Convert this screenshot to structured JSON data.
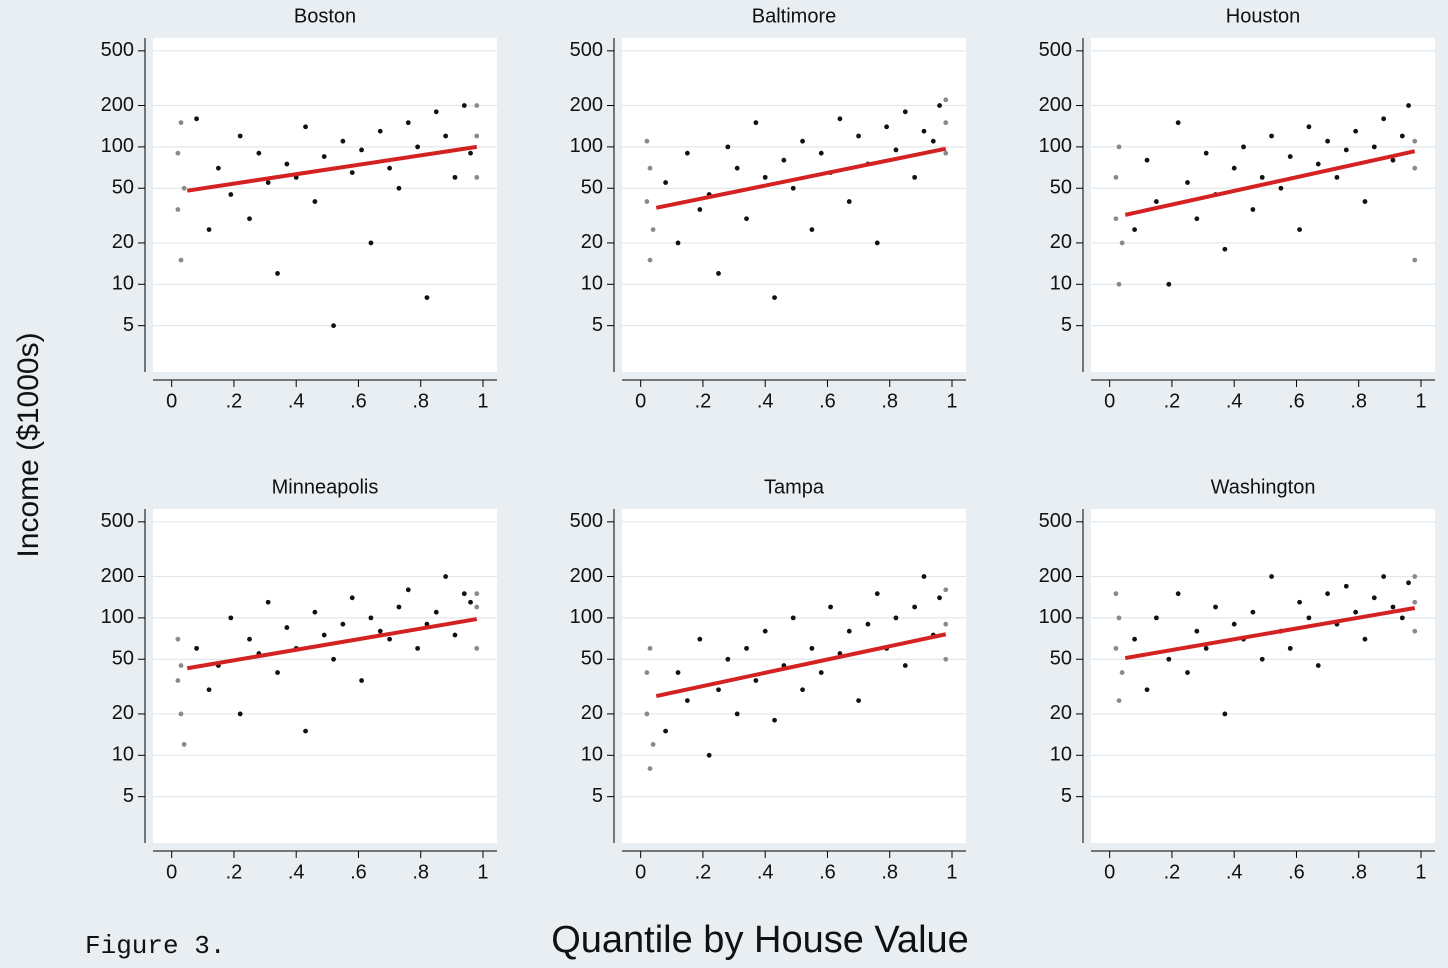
{
  "y_label": "Income ($1000s)",
  "x_label": "Quantile by House Value",
  "caption": "Figure 3.",
  "chart_data": [
    {
      "type": "scatter",
      "title": "Boston",
      "log_y": true,
      "grid": true,
      "xlim": [
        -0.06,
        1.045
      ],
      "ylim": [
        2.3,
        620
      ],
      "xticks": [
        0,
        {
          "value": 0.2,
          "label": ".2"
        },
        {
          "value": 0.4,
          "label": ".4"
        },
        {
          "value": 0.6,
          "label": ".6"
        },
        {
          "value": 0.8,
          "label": ".8"
        },
        1
      ],
      "yticks": [
        5,
        10,
        20,
        50,
        100,
        200,
        500
      ],
      "series": [
        {
          "color": "#111111",
          "x": [
            0.08,
            0.12,
            0.15,
            0.19,
            0.22,
            0.25,
            0.28,
            0.31,
            0.34,
            0.37,
            0.4,
            0.43,
            0.46,
            0.49,
            0.52,
            0.55,
            0.58,
            0.61,
            0.64,
            0.67,
            0.7,
            0.73,
            0.76,
            0.79,
            0.82,
            0.85,
            0.88,
            0.91,
            0.94,
            0.96
          ],
          "y": [
            160,
            25,
            70,
            45,
            120,
            30,
            90,
            55,
            12,
            75,
            60,
            140,
            40,
            85,
            5,
            110,
            65,
            95,
            20,
            130,
            70,
            50,
            150,
            100,
            8,
            180,
            120,
            60,
            200,
            90
          ]
        },
        {
          "color": "#8a8a8a",
          "x": [
            0.02,
            0.03,
            0.02,
            0.04,
            0.03,
            0.98,
            0.98,
            0.98
          ],
          "y": [
            35,
            15,
            90,
            50,
            150,
            120,
            200,
            60
          ]
        }
      ],
      "fit": {
        "color": "#d42222",
        "x": [
          0.05,
          0.98
        ],
        "y": [
          48,
          100
        ]
      }
    },
    {
      "type": "scatter",
      "title": "Baltimore",
      "log_y": true,
      "grid": true,
      "xlim": [
        -0.06,
        1.045
      ],
      "ylim": [
        2.3,
        620
      ],
      "xticks": [
        0,
        {
          "value": 0.2,
          "label": ".2"
        },
        {
          "value": 0.4,
          "label": ".4"
        },
        {
          "value": 0.6,
          "label": ".6"
        },
        {
          "value": 0.8,
          "label": ".8"
        },
        1
      ],
      "yticks": [
        5,
        10,
        20,
        50,
        100,
        200,
        500
      ],
      "series": [
        {
          "color": "#111111",
          "x": [
            0.08,
            0.12,
            0.15,
            0.19,
            0.22,
            0.25,
            0.28,
            0.31,
            0.34,
            0.37,
            0.4,
            0.43,
            0.46,
            0.49,
            0.52,
            0.55,
            0.58,
            0.61,
            0.64,
            0.67,
            0.7,
            0.73,
            0.76,
            0.79,
            0.82,
            0.85,
            0.88,
            0.91,
            0.94,
            0.96
          ],
          "y": [
            55,
            20,
            90,
            35,
            45,
            12,
            100,
            70,
            30,
            150,
            60,
            8,
            80,
            50,
            110,
            25,
            90,
            65,
            160,
            40,
            120,
            75,
            20,
            140,
            95,
            180,
            60,
            130,
            110,
            200
          ]
        },
        {
          "color": "#8a8a8a",
          "x": [
            0.02,
            0.03,
            0.02,
            0.04,
            0.03,
            0.98,
            0.98,
            0.98
          ],
          "y": [
            40,
            15,
            110,
            25,
            70,
            150,
            90,
            220
          ]
        }
      ],
      "fit": {
        "color": "#d42222",
        "x": [
          0.05,
          0.98
        ],
        "y": [
          36,
          97
        ]
      }
    },
    {
      "type": "scatter",
      "title": "Houston",
      "log_y": true,
      "grid": true,
      "xlim": [
        -0.06,
        1.045
      ],
      "ylim": [
        2.3,
        620
      ],
      "xticks": [
        0,
        {
          "value": 0.2,
          "label": ".2"
        },
        {
          "value": 0.4,
          "label": ".4"
        },
        {
          "value": 0.6,
          "label": ".6"
        },
        {
          "value": 0.8,
          "label": ".8"
        },
        1
      ],
      "yticks": [
        5,
        10,
        20,
        50,
        100,
        200,
        500
      ],
      "series": [
        {
          "color": "#111111",
          "x": [
            0.08,
            0.12,
            0.15,
            0.19,
            0.22,
            0.25,
            0.28,
            0.31,
            0.34,
            0.37,
            0.4,
            0.43,
            0.46,
            0.49,
            0.52,
            0.55,
            0.58,
            0.61,
            0.64,
            0.67,
            0.7,
            0.73,
            0.76,
            0.79,
            0.82,
            0.85,
            0.88,
            0.91,
            0.94,
            0.96
          ],
          "y": [
            25,
            80,
            40,
            10,
            150,
            55,
            30,
            90,
            45,
            18,
            70,
            100,
            35,
            60,
            120,
            50,
            85,
            25,
            140,
            75,
            110,
            60,
            95,
            130,
            40,
            100,
            160,
            80,
            120,
            200
          ]
        },
        {
          "color": "#8a8a8a",
          "x": [
            0.02,
            0.03,
            0.02,
            0.04,
            0.03,
            0.98,
            0.98,
            0.98
          ],
          "y": [
            30,
            10,
            60,
            20,
            100,
            110,
            70,
            15
          ]
        }
      ],
      "fit": {
        "color": "#d42222",
        "x": [
          0.05,
          0.98
        ],
        "y": [
          32,
          93
        ]
      }
    },
    {
      "type": "scatter",
      "title": "Minneapolis",
      "log_y": true,
      "grid": true,
      "xlim": [
        -0.06,
        1.045
      ],
      "ylim": [
        2.3,
        620
      ],
      "xticks": [
        0,
        {
          "value": 0.2,
          "label": ".2"
        },
        {
          "value": 0.4,
          "label": ".4"
        },
        {
          "value": 0.6,
          "label": ".6"
        },
        {
          "value": 0.8,
          "label": ".8"
        },
        1
      ],
      "yticks": [
        5,
        10,
        20,
        50,
        100,
        200,
        500
      ],
      "series": [
        {
          "color": "#111111",
          "x": [
            0.08,
            0.12,
            0.15,
            0.19,
            0.22,
            0.25,
            0.28,
            0.31,
            0.34,
            0.37,
            0.4,
            0.43,
            0.46,
            0.49,
            0.52,
            0.55,
            0.58,
            0.61,
            0.64,
            0.67,
            0.7,
            0.73,
            0.76,
            0.79,
            0.82,
            0.85,
            0.88,
            0.91,
            0.94,
            0.96
          ],
          "y": [
            60,
            30,
            45,
            100,
            20,
            70,
            55,
            130,
            40,
            85,
            60,
            15,
            110,
            75,
            50,
            90,
            140,
            35,
            100,
            80,
            70,
            120,
            160,
            60,
            90,
            110,
            200,
            75,
            150,
            130
          ]
        },
        {
          "color": "#8a8a8a",
          "x": [
            0.02,
            0.03,
            0.02,
            0.04,
            0.03,
            0.98,
            0.98,
            0.98
          ],
          "y": [
            35,
            20,
            70,
            12,
            45,
            120,
            60,
            150
          ]
        }
      ],
      "fit": {
        "color": "#d42222",
        "x": [
          0.05,
          0.98
        ],
        "y": [
          43,
          98
        ]
      }
    },
    {
      "type": "scatter",
      "title": "Tampa",
      "log_y": true,
      "grid": true,
      "xlim": [
        -0.06,
        1.045
      ],
      "ylim": [
        2.3,
        620
      ],
      "xticks": [
        0,
        {
          "value": 0.2,
          "label": ".2"
        },
        {
          "value": 0.4,
          "label": ".4"
        },
        {
          "value": 0.6,
          "label": ".6"
        },
        {
          "value": 0.8,
          "label": ".8"
        },
        1
      ],
      "yticks": [
        5,
        10,
        20,
        50,
        100,
        200,
        500
      ],
      "series": [
        {
          "color": "#111111",
          "x": [
            0.08,
            0.12,
            0.15,
            0.19,
            0.22,
            0.25,
            0.28,
            0.31,
            0.34,
            0.37,
            0.4,
            0.43,
            0.46,
            0.49,
            0.52,
            0.55,
            0.58,
            0.61,
            0.64,
            0.67,
            0.7,
            0.73,
            0.76,
            0.79,
            0.82,
            0.85,
            0.88,
            0.91,
            0.94,
            0.96
          ],
          "y": [
            15,
            40,
            25,
            70,
            10,
            30,
            50,
            20,
            60,
            35,
            80,
            18,
            45,
            100,
            30,
            60,
            40,
            120,
            55,
            80,
            25,
            90,
            150,
            60,
            100,
            45,
            120,
            200,
            75,
            140
          ]
        },
        {
          "color": "#8a8a8a",
          "x": [
            0.02,
            0.03,
            0.02,
            0.04,
            0.03,
            0.98,
            0.98,
            0.98
          ],
          "y": [
            20,
            8,
            40,
            12,
            60,
            90,
            50,
            160
          ]
        }
      ],
      "fit": {
        "color": "#d42222",
        "x": [
          0.05,
          0.98
        ],
        "y": [
          27,
          76
        ]
      }
    },
    {
      "type": "scatter",
      "title": "Washington",
      "log_y": true,
      "grid": true,
      "xlim": [
        -0.06,
        1.045
      ],
      "ylim": [
        2.3,
        620
      ],
      "xticks": [
        0,
        {
          "value": 0.2,
          "label": ".2"
        },
        {
          "value": 0.4,
          "label": ".4"
        },
        {
          "value": 0.6,
          "label": ".6"
        },
        {
          "value": 0.8,
          "label": ".8"
        },
        1
      ],
      "yticks": [
        5,
        10,
        20,
        50,
        100,
        200,
        500
      ],
      "series": [
        {
          "color": "#111111",
          "x": [
            0.08,
            0.12,
            0.15,
            0.19,
            0.22,
            0.25,
            0.28,
            0.31,
            0.34,
            0.37,
            0.4,
            0.43,
            0.46,
            0.49,
            0.52,
            0.55,
            0.58,
            0.61,
            0.64,
            0.67,
            0.7,
            0.73,
            0.76,
            0.79,
            0.82,
            0.85,
            0.88,
            0.91,
            0.94,
            0.96
          ],
          "y": [
            70,
            30,
            100,
            50,
            150,
            40,
            80,
            60,
            120,
            20,
            90,
            70,
            110,
            50,
            200,
            80,
            60,
            130,
            100,
            45,
            150,
            90,
            170,
            110,
            70,
            140,
            200,
            120,
            100,
            180
          ]
        },
        {
          "color": "#8a8a8a",
          "x": [
            0.02,
            0.03,
            0.02,
            0.04,
            0.03,
            0.98,
            0.98,
            0.98
          ],
          "y": [
            60,
            25,
            150,
            40,
            100,
            130,
            80,
            200
          ]
        }
      ],
      "fit": {
        "color": "#d42222",
        "x": [
          0.05,
          0.98
        ],
        "y": [
          51,
          118
        ]
      }
    }
  ]
}
